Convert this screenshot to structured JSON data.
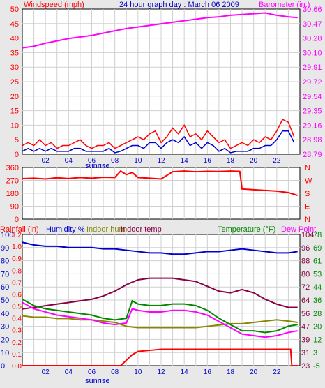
{
  "title": "24 hour graph day : March 06 2009",
  "colors": {
    "background": "#e8e8e8",
    "plot_bg": "#ffffff",
    "red": "#ff0000",
    "blue": "#0000cc",
    "magenta": "#ff00ff",
    "green": "#008800",
    "olive": "#888800",
    "maroon": "#880044",
    "dark_red": "#cc0000"
  },
  "chart_data": [
    {
      "type": "line",
      "left_axis_label": "Windspeed (mph)",
      "right_axis_label": "Barometer (in.)",
      "left_ticks": [
        "50",
        "45",
        "40",
        "35",
        "30",
        "25",
        "20",
        "15",
        "10",
        "5",
        "0"
      ],
      "right_ticks": [
        "30.66",
        "30.47",
        "30.28",
        "30.10",
        "29.91",
        "29.72",
        "29.54",
        "29.35",
        "29.16",
        "28.98",
        "28.79"
      ],
      "xlim": [
        0,
        24
      ],
      "x_ticks": [
        "02",
        "04",
        "06",
        "08",
        "10",
        "12",
        "14",
        "16",
        "18",
        "20",
        "22"
      ],
      "x_annotation": "sunrise",
      "x_annotation_hour": 6.8,
      "series": [
        {
          "name": "Windspeed (mph)",
          "axis": "left",
          "color": "#ff0000",
          "x": [
            0,
            0.5,
            1,
            1.5,
            2,
            2.5,
            3,
            3.5,
            4,
            4.5,
            5,
            5.5,
            6,
            6.5,
            7,
            7.5,
            8,
            8.5,
            9,
            9.5,
            10,
            10.5,
            11,
            11.5,
            12,
            12.5,
            13,
            13.5,
            14,
            14.5,
            15,
            15.5,
            16,
            16.5,
            17,
            17.5,
            18,
            18.5,
            19,
            19.5,
            20,
            20.5,
            21,
            21.5,
            22,
            22.5,
            23,
            23.5
          ],
          "y": [
            3,
            4,
            3,
            5,
            3,
            4,
            2,
            3,
            3,
            4,
            5,
            3,
            2,
            3,
            3,
            4,
            2,
            3,
            4,
            5,
            6,
            5,
            7,
            8,
            4,
            6,
            9,
            7,
            10,
            6,
            7,
            5,
            8,
            6,
            4,
            5,
            2,
            3,
            4,
            3,
            5,
            4,
            6,
            5,
            8,
            12,
            11,
            6
          ]
        },
        {
          "name": "Windspeed gust",
          "axis": "left",
          "color": "#0000cc",
          "x": [
            0,
            0.5,
            1,
            1.5,
            2,
            2.5,
            3,
            3.5,
            4,
            4.5,
            5,
            5.5,
            6,
            6.5,
            7,
            7.5,
            8,
            8.5,
            9,
            9.5,
            10,
            10.5,
            11,
            11.5,
            12,
            12.5,
            13,
            13.5,
            14,
            14.5,
            15,
            15.5,
            16,
            16.5,
            17,
            17.5,
            18,
            18.5,
            19,
            19.5,
            20,
            20.5,
            21,
            21.5,
            22,
            22.5,
            23,
            23.5
          ],
          "y": [
            1,
            2,
            1,
            2,
            1,
            2,
            1,
            1,
            1,
            2,
            2,
            1,
            1,
            1,
            1,
            2,
            0.5,
            1,
            2,
            3,
            3,
            2,
            4,
            4,
            2,
            4,
            5,
            4,
            6,
            3,
            4,
            2,
            4,
            3,
            1,
            2,
            0.5,
            1,
            1,
            1,
            2,
            2,
            3,
            3,
            5,
            8,
            8,
            4
          ]
        },
        {
          "name": "Barometer (in.)",
          "axis": "right",
          "color": "#ff00ff",
          "x": [
            0,
            1,
            2,
            3,
            4,
            5,
            6,
            7,
            8,
            9,
            10,
            11,
            12,
            13,
            14,
            15,
            16,
            17,
            18,
            19,
            20,
            21,
            22,
            23,
            23.8
          ],
          "y": [
            30.16,
            30.18,
            30.22,
            30.25,
            30.28,
            30.3,
            30.32,
            30.35,
            30.38,
            30.41,
            30.43,
            30.45,
            30.47,
            30.49,
            30.51,
            30.53,
            30.55,
            30.56,
            30.58,
            30.59,
            30.6,
            30.61,
            30.58,
            30.56,
            30.55
          ]
        }
      ]
    },
    {
      "type": "line",
      "left_ticks": [
        "360",
        "270",
        "180",
        "90",
        "0"
      ],
      "right_ticks": [
        "N",
        "W",
        "S",
        "E",
        "N"
      ],
      "xlim": [
        0,
        24
      ],
      "series": [
        {
          "name": "Wind direction",
          "axis": "left",
          "color": "#ff0000",
          "x": [
            0,
            1,
            2,
            3,
            4,
            5,
            6,
            7,
            8,
            8.5,
            9,
            9.5,
            10,
            11,
            12,
            13,
            14,
            15,
            16,
            17,
            18,
            18.8,
            19,
            20,
            21,
            22,
            23,
            23.8
          ],
          "y": [
            282,
            285,
            280,
            288,
            283,
            290,
            285,
            292,
            290,
            335,
            310,
            325,
            290,
            285,
            280,
            330,
            335,
            330,
            333,
            332,
            335,
            333,
            210,
            205,
            200,
            195,
            185,
            165
          ]
        }
      ]
    },
    {
      "type": "line",
      "left_axis_labels": [
        {
          "text": "Rainfall (in)",
          "color": "#ff0000"
        },
        {
          "text": "Humidity %",
          "color": "#0000cc"
        },
        {
          "text": "Indoor hum",
          "color": "#888800"
        },
        {
          "text": "Indoor temp",
          "color": "#880044"
        }
      ],
      "right_axis_labels": [
        {
          "text": "Temperature (°F)",
          "color": "#008800"
        },
        {
          "text": "Dew Point",
          "color": "#ff00ff"
        }
      ],
      "left_ticks_humidity": [
        "100",
        "90",
        "80",
        "70",
        "60",
        "50",
        "40",
        "30",
        "20",
        "10",
        "0"
      ],
      "left_ticks_rain": [
        "1.2",
        "1.0",
        "0.9",
        "0.8",
        "0.7",
        "0.6",
        "0.5",
        "0.4",
        "0.3",
        "0.2",
        "0.1",
        "0.0"
      ],
      "right_ticks_temp": [
        "78",
        "69",
        "61",
        "53",
        "44",
        "36",
        "28",
        "20",
        "12",
        "3",
        "-5"
      ],
      "right_ticks_indoor": [
        "104",
        "96",
        "88",
        "80",
        "72",
        "64",
        "56",
        "47",
        "39",
        "31",
        "23"
      ],
      "xlim": [
        0,
        24
      ],
      "x_ticks": [
        "02",
        "04",
        "06",
        "08",
        "10",
        "12",
        "14",
        "16",
        "18",
        "20",
        "22"
      ],
      "x_annotation": "sunrise",
      "x_annotation_hour": 6.8,
      "series": [
        {
          "name": "Humidity %",
          "axis": "humidity",
          "color": "#0000cc",
          "x": [
            0,
            0.5,
            1,
            2,
            3,
            4,
            5,
            6,
            7,
            8,
            9,
            10,
            11,
            12,
            13,
            14,
            15,
            16,
            17,
            18,
            19,
            20,
            21,
            22,
            23,
            23.8
          ],
          "y": [
            94,
            93,
            92,
            91,
            91,
            90,
            90,
            90,
            89,
            89,
            88,
            87,
            86,
            86,
            85,
            85,
            86,
            87,
            87,
            88,
            89,
            88,
            87,
            86,
            86,
            87
          ]
        },
        {
          "name": "Indoor temp",
          "axis": "indoor",
          "color": "#880044",
          "x": [
            0,
            1,
            2,
            3,
            4,
            5,
            6,
            7,
            8,
            9,
            10,
            11,
            12,
            13,
            14,
            15,
            16,
            17,
            18,
            19,
            20,
            21,
            22,
            23,
            23.8
          ],
          "y": [
            58,
            59,
            60,
            61,
            62,
            63,
            64,
            66,
            69,
            73,
            76,
            77,
            77,
            77,
            76,
            75,
            72,
            69,
            68,
            70,
            68,
            64,
            61,
            59,
            59
          ]
        },
        {
          "name": "Indoor hum",
          "axis": "humidity",
          "color": "#888800",
          "x": [
            0,
            1,
            2,
            3,
            4,
            5,
            6,
            7,
            8,
            9,
            10,
            11,
            12,
            13,
            14,
            15,
            16,
            17,
            18,
            19,
            20,
            21,
            22,
            23,
            23.8
          ],
          "y": [
            38,
            37,
            37,
            36,
            36,
            35,
            35,
            34,
            33,
            30,
            29,
            29,
            29,
            29,
            29,
            29,
            30,
            31,
            32,
            32,
            33,
            34,
            35,
            34,
            33
          ]
        },
        {
          "name": "Temperature (°F)",
          "axis": "temp",
          "color": "#008800",
          "x": [
            0,
            1,
            2,
            3,
            4,
            5,
            6,
            7,
            8,
            9,
            9.5,
            10,
            11,
            12,
            13,
            14,
            15,
            16,
            17,
            18,
            19,
            20,
            21,
            22,
            23,
            23.8
          ],
          "y": [
            37,
            33,
            31,
            30,
            29,
            28,
            27,
            25,
            24,
            25,
            36,
            34,
            33,
            33,
            34,
            34,
            33,
            30,
            25,
            21,
            17,
            17,
            16,
            17,
            20,
            21
          ]
        },
        {
          "name": "Dew Point",
          "axis": "temp",
          "color": "#ff00ff",
          "x": [
            0,
            1,
            2,
            3,
            4,
            5,
            6,
            7,
            8,
            9,
            9.5,
            10,
            11,
            12,
            13,
            14,
            15,
            16,
            17,
            18,
            19,
            20,
            21,
            22,
            23,
            23.8
          ],
          "y": [
            35,
            31,
            29,
            27,
            26,
            25,
            24,
            22,
            21,
            22,
            31,
            30,
            29,
            29,
            30,
            30,
            29,
            27,
            23,
            19,
            15,
            14,
            13,
            14,
            16,
            17
          ]
        },
        {
          "name": "Rainfall (in)",
          "axis": "rain",
          "color": "#ff0000",
          "x": [
            0,
            8,
            8.5,
            9,
            9.5,
            10,
            11,
            12,
            14,
            16,
            18,
            20,
            22,
            23.2,
            23.3,
            23.8
          ],
          "y": [
            0.0,
            0.0,
            0.0,
            0.05,
            0.1,
            0.13,
            0.14,
            0.15,
            0.15,
            0.15,
            0.15,
            0.15,
            0.15,
            0.15,
            0.0,
            0.0
          ]
        }
      ]
    }
  ]
}
